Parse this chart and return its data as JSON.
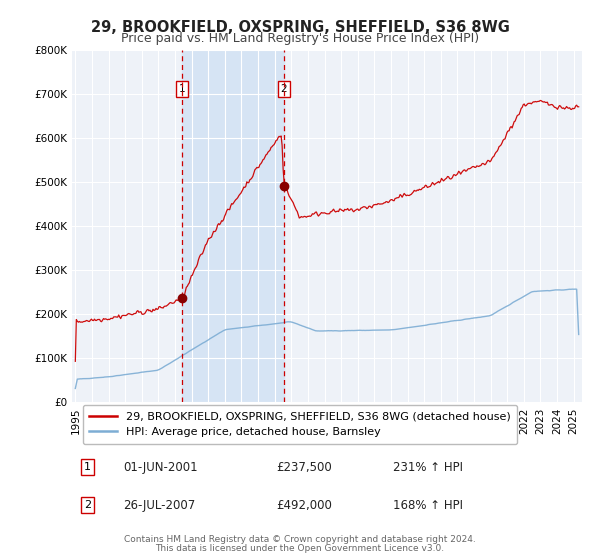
{
  "title": "29, BROOKFIELD, OXSPRING, SHEFFIELD, S36 8WG",
  "subtitle": "Price paid vs. HM Land Registry's House Price Index (HPI)",
  "ylim": [
    0,
    800000
  ],
  "xlim_start": 1994.8,
  "xlim_end": 2025.5,
  "yticks": [
    0,
    100000,
    200000,
    300000,
    400000,
    500000,
    600000,
    700000,
    800000
  ],
  "ytick_labels": [
    "£0",
    "£100K",
    "£200K",
    "£300K",
    "£400K",
    "£500K",
    "£600K",
    "£700K",
    "£800K"
  ],
  "xticks": [
    1995,
    1996,
    1997,
    1998,
    1999,
    2000,
    2001,
    2002,
    2003,
    2004,
    2005,
    2006,
    2007,
    2008,
    2009,
    2010,
    2011,
    2012,
    2013,
    2014,
    2015,
    2016,
    2017,
    2018,
    2019,
    2020,
    2021,
    2022,
    2023,
    2024,
    2025
  ],
  "bg_color": "#ffffff",
  "plot_bg_color": "#eef2f8",
  "grid_color": "#ffffff",
  "highlight_color": "#d6e4f4",
  "red_line_color": "#cc0000",
  "blue_line_color": "#7dadd4",
  "marker_color": "#880000",
  "annotation1_date": 2001.42,
  "annotation1_price": 237500,
  "annotation2_date": 2007.56,
  "annotation2_price": 492000,
  "legend_red_label": "29, BROOKFIELD, OXSPRING, SHEFFIELD, S36 8WG (detached house)",
  "legend_blue_label": "HPI: Average price, detached house, Barnsley",
  "table_row1_num": "1",
  "table_row1_date": "01-JUN-2001",
  "table_row1_price": "£237,500",
  "table_row1_pct": "231% ↑ HPI",
  "table_row2_num": "2",
  "table_row2_date": "26-JUL-2007",
  "table_row2_price": "£492,000",
  "table_row2_pct": "168% ↑ HPI",
  "footer1": "Contains HM Land Registry data © Crown copyright and database right 2024.",
  "footer2": "This data is licensed under the Open Government Licence v3.0.",
  "title_fontsize": 10.5,
  "subtitle_fontsize": 9,
  "tick_fontsize": 7.5,
  "legend_fontsize": 8,
  "table_fontsize": 8.5,
  "footer_fontsize": 6.5
}
